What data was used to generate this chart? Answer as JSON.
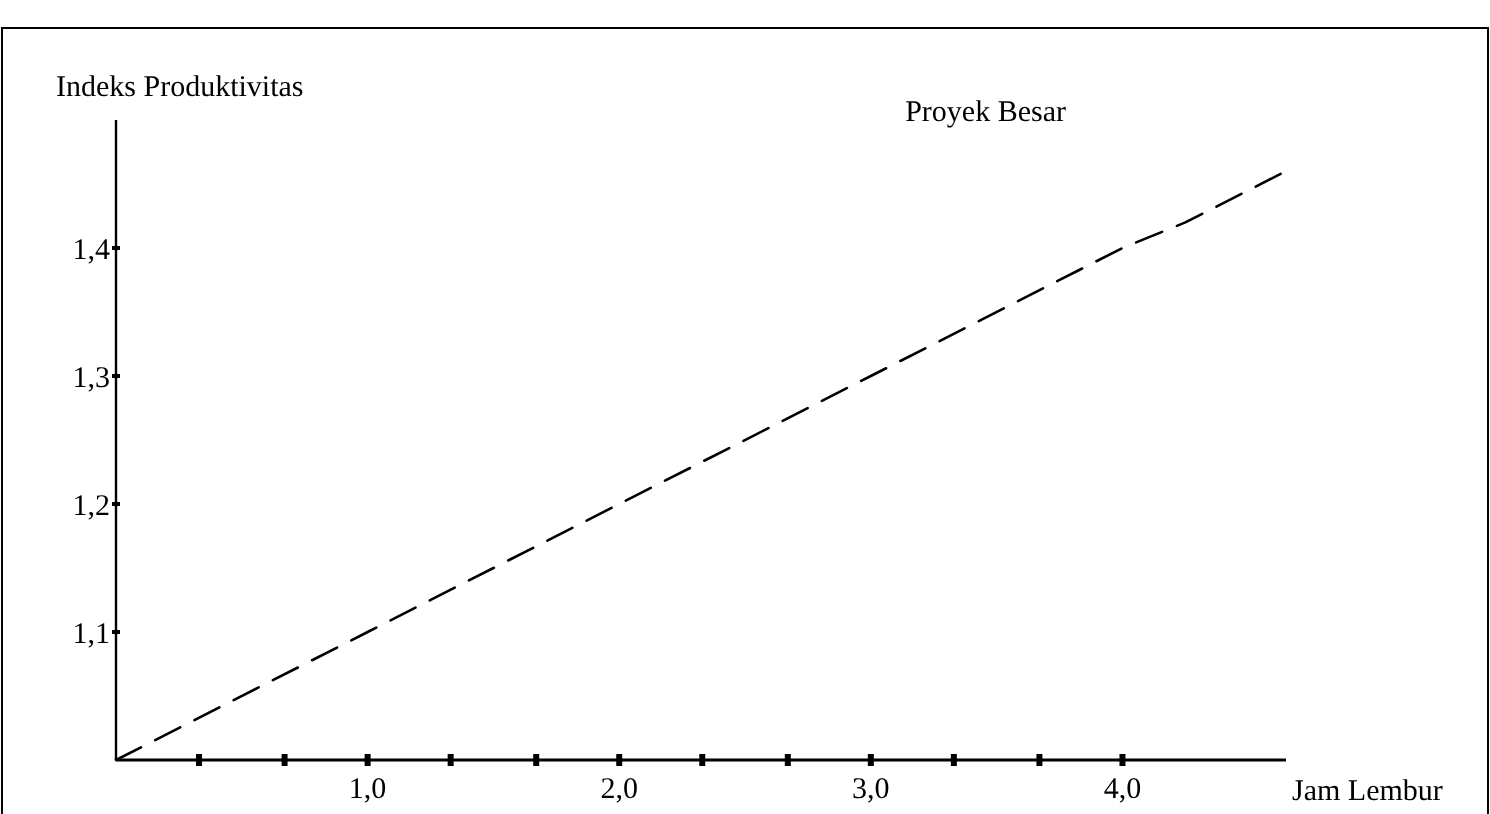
{
  "chart_data": {
    "type": "line",
    "xlabel": "Jam Lembur",
    "ylabel": "Indeks Produktivitas",
    "x": [
      0,
      1,
      2,
      3,
      4,
      4.25,
      4.65
    ],
    "series": [
      {
        "name": "Proyek Besar",
        "color": "#000000",
        "values": [
          1.0,
          1.1,
          1.2,
          1.3,
          1.4,
          1.42,
          1.46
        ]
      }
    ],
    "xlim": [
      0,
      4.65
    ],
    "ylim": [
      1.0,
      1.5
    ],
    "xticks": [
      {
        "value": 0.33,
        "label": null
      },
      {
        "value": 0.67,
        "label": null
      },
      {
        "value": 1,
        "label": "1,0"
      },
      {
        "value": 1.33,
        "label": null
      },
      {
        "value": 1.67,
        "label": null
      },
      {
        "value": 2,
        "label": "2,0"
      },
      {
        "value": 2.33,
        "label": null
      },
      {
        "value": 2.67,
        "label": null
      },
      {
        "value": 3,
        "label": "3,0"
      },
      {
        "value": 3.33,
        "label": null
      },
      {
        "value": 3.67,
        "label": null
      },
      {
        "value": 4,
        "label": "4,0"
      }
    ],
    "yticks": [
      {
        "value": 1.1,
        "label": "1,1"
      },
      {
        "value": 1.2,
        "label": "1,2"
      },
      {
        "value": 1.3,
        "label": "1,3"
      },
      {
        "value": 1.4,
        "label": "1,4"
      }
    ],
    "line_style": "dashed",
    "marker": "none"
  }
}
